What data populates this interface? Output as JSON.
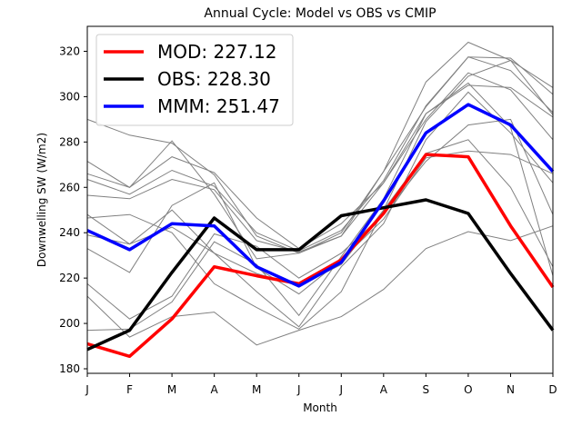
{
  "chart_data": {
    "type": "line",
    "title": "Annual Cycle: Model vs OBS vs CMIP",
    "xlabel": "Month",
    "ylabel": "Downwelling SW (W/m2)",
    "categories": [
      "J",
      "F",
      "M",
      "A",
      "M",
      "J",
      "J",
      "A",
      "S",
      "O",
      "N",
      "D"
    ],
    "ylim": [
      178,
      331
    ],
    "yticks": [
      180,
      200,
      220,
      240,
      260,
      280,
      300,
      320
    ],
    "grid": false,
    "legend_position": "top-left",
    "series": [
      {
        "name": "MOD: 227.12",
        "color": "#ff0000",
        "values": [
          191,
          185.5,
          202,
          225,
          221,
          217.5,
          228,
          248.5,
          274.5,
          273.5,
          243,
          216
        ]
      },
      {
        "name": "OBS: 228.30",
        "color": "#000000",
        "values": [
          188.5,
          197,
          222.5,
          246.5,
          232.5,
          232.5,
          247.5,
          251,
          254.5,
          248.5,
          222,
          197
        ]
      },
      {
        "name": "MMM: 251.47",
        "color": "#0000ff",
        "values": [
          241,
          232.5,
          244,
          243,
          225,
          216.5,
          227,
          254,
          284,
          296.5,
          287.5,
          267
        ]
      }
    ],
    "ensemble_color": "#808080",
    "ensemble": [
      [
        290,
        283,
        279.5,
        265.5,
        238.5,
        231,
        238.5,
        267,
        306.5,
        324,
        316,
        304
      ],
      [
        271.5,
        260,
        280.5,
        257,
        228.5,
        231,
        240,
        267,
        295.5,
        317.5,
        317,
        301
      ],
      [
        266,
        260,
        273.5,
        266.5,
        246.5,
        233,
        244,
        262,
        292.5,
        305,
        304,
        291
      ],
      [
        263.5,
        257,
        267.5,
        260.5,
        240,
        232,
        241,
        263,
        296,
        317.5,
        311.5,
        293
      ],
      [
        256.5,
        255,
        263.5,
        259,
        236.5,
        231.5,
        238.5,
        262,
        290,
        310.5,
        303,
        281
      ],
      [
        246.5,
        248,
        240,
        217.5,
        207,
        197.5,
        214,
        250,
        289,
        309,
        316,
        292
      ],
      [
        248,
        235,
        242.5,
        231,
        214,
        198.5,
        225,
        244,
        281,
        302,
        284,
        262
      ],
      [
        239,
        235,
        250,
        231,
        222,
        216.5,
        226,
        250,
        275,
        281,
        260,
        225
      ],
      [
        233,
        222.5,
        252,
        262,
        224.5,
        213,
        228,
        246,
        273,
        276,
        274.5,
        266
      ],
      [
        217.5,
        202,
        212,
        239.5,
        234,
        220,
        231,
        248,
        271.5,
        287.5,
        290,
        248
      ],
      [
        212,
        194,
        203,
        205,
        190.5,
        197,
        203,
        215,
        233,
        240.5,
        236.5,
        243
      ],
      [
        197,
        197.5,
        209.5,
        236,
        226,
        203.5,
        229.5,
        255,
        292.5,
        306,
        286.5,
        221
      ]
    ]
  }
}
